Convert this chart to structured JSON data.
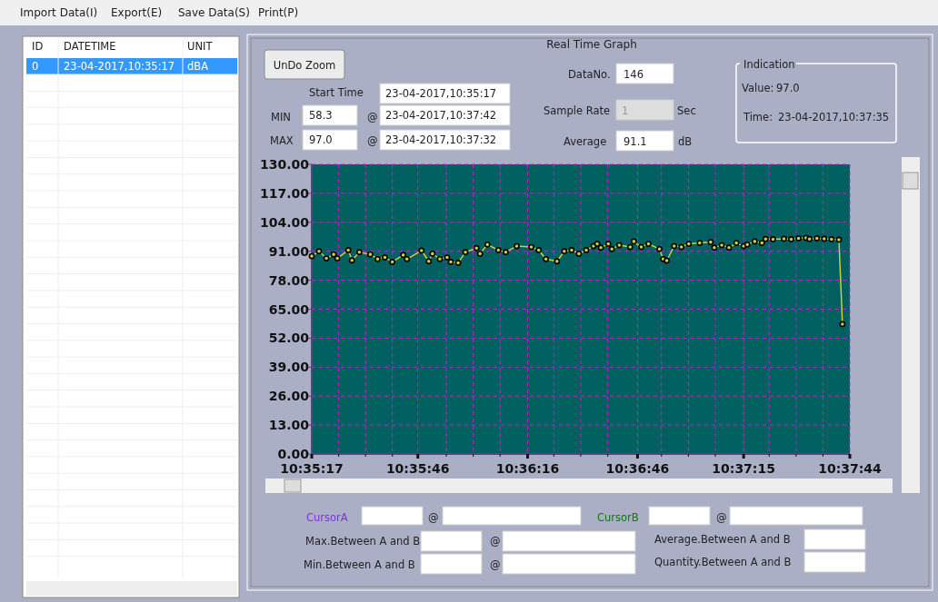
{
  "chart_data": {
    "type": "line",
    "title": "Real Time Graph",
    "x": [
      10.58806,
      10.58861,
      10.58917,
      10.58972,
      10.59,
      10.59083,
      10.59111,
      10.59167,
      10.5925,
      10.59306,
      10.59361,
      10.59417,
      10.595,
      10.59528,
      10.59639,
      10.59694,
      10.59722,
      10.59778,
      10.59833,
      10.59861,
      10.59917,
      10.59972,
      10.60056,
      10.60083,
      10.60139,
      10.60222,
      10.60278,
      10.60361,
      10.60472,
      10.60528,
      10.60583,
      10.60667,
      10.60722,
      10.60778,
      10.60833,
      10.60889,
      10.60944,
      10.60972,
      10.61,
      10.61056,
      10.61083,
      10.61139,
      10.61222,
      10.6125,
      10.61306,
      10.61361,
      10.61444,
      10.61472,
      10.615,
      10.61556,
      10.61611,
      10.61667,
      10.6175,
      10.61833,
      10.61861,
      10.61917,
      10.61972,
      10.62028,
      10.62083,
      10.62111,
      10.62167,
      10.62222,
      10.6225,
      10.62306,
      10.62389,
      10.62444,
      10.625,
      10.62556,
      10.62583,
      10.62639,
      10.62694,
      10.6275,
      10.62806,
      10.62833
    ],
    "series": [
      {
        "color": "#c8d040",
        "values": [
          88.8,
          91.0,
          87.8,
          89.6,
          87.8,
          91.5,
          86.9,
          90.6,
          89.6,
          87.5,
          88.2,
          86.2,
          89.3,
          87.5,
          91.3,
          86.5,
          89.9,
          87.5,
          88.2,
          86.2,
          85.8,
          90.6,
          92.4,
          89.9,
          94.0,
          91.5,
          90.6,
          93.3,
          92.9,
          91.5,
          87.5,
          86.5,
          91.0,
          91.5,
          89.9,
          91.5,
          93.3,
          94.3,
          92.6,
          94.3,
          92.0,
          93.7,
          92.9,
          95.4,
          92.9,
          94.3,
          92.0,
          87.5,
          86.8,
          93.3,
          92.9,
          94.3,
          94.7,
          95.1,
          92.6,
          93.7,
          92.6,
          94.7,
          93.3,
          94.0,
          95.4,
          94.7,
          96.5,
          96.4,
          96.6,
          96.4,
          96.8,
          97.0,
          96.5,
          96.8,
          96.6,
          96.4,
          96.2,
          58.3
        ]
      }
    ],
    "xlim": [
      10.58806,
      10.62889
    ],
    "xticks": [
      {
        "value": 10.58806,
        "label": "10:35:17"
      },
      {
        "value": 10.5901,
        "label": null
      },
      {
        "value": 10.59214,
        "label": null
      },
      {
        "value": 10.59418,
        "label": null
      },
      {
        "value": 10.59611,
        "label": "10:35:46"
      },
      {
        "value": 10.59827,
        "label": null
      },
      {
        "value": 10.60031,
        "label": null
      },
      {
        "value": 10.60235,
        "label": null
      },
      {
        "value": 10.60444,
        "label": "10:36:16"
      },
      {
        "value": 10.60643,
        "label": null
      },
      {
        "value": 10.60847,
        "label": null
      },
      {
        "value": 10.61052,
        "label": null
      },
      {
        "value": 10.61278,
        "label": "10:36:46"
      },
      {
        "value": 10.6146,
        "label": null
      },
      {
        "value": 10.61664,
        "label": null
      },
      {
        "value": 10.61868,
        "label": null
      },
      {
        "value": 10.62083,
        "label": "10:37:15"
      },
      {
        "value": 10.62277,
        "label": null
      },
      {
        "value": 10.62481,
        "label": null
      },
      {
        "value": 10.62685,
        "label": null
      },
      {
        "value": 10.62889,
        "label": "10:37:44"
      }
    ],
    "ylim": [
      0,
      130
    ],
    "yticks": [
      {
        "value": 0,
        "label": "0.00"
      },
      {
        "value": 13,
        "label": "13.00"
      },
      {
        "value": 26,
        "label": "26.00"
      },
      {
        "value": 39,
        "label": "39.00"
      },
      {
        "value": 52,
        "label": "52.00"
      },
      {
        "value": 65,
        "label": "65.00"
      },
      {
        "value": 78,
        "label": "78.00"
      },
      {
        "value": 91,
        "label": "91.00"
      },
      {
        "value": 104,
        "label": "104.00"
      },
      {
        "value": 117,
        "label": "117.00"
      },
      {
        "value": 130,
        "label": "130.00"
      }
    ],
    "grid": true,
    "marker": "circle",
    "annotations": [
      "Import Data(I)",
      "Export(E)",
      "Save Data(S)",
      "Print(P)",
      "ID",
      "DATETIME",
      "UNIT",
      "0",
      "23-04-2017,10:35:17",
      "dBA",
      "UnDo Zoom",
      "Start Time",
      "23-04-2017,10:35:17",
      "MIN",
      "58.3",
      "@",
      "23-04-2017,10:37:42",
      "MAX",
      "97.0",
      "@",
      "23-04-2017,10:37:32",
      "DataNo.",
      "146",
      "Sample Rate",
      "1",
      "Sec",
      "Average",
      "91.1",
      "dB",
      "Indication",
      "Value:",
      "97.0",
      "Time:",
      "23-04-2017,10:37:35",
      "CursorA",
      "@",
      "CursorB",
      "@",
      "Max.Between A and B",
      "@",
      "Average.Between A and B",
      "Min.Between A and B",
      "@",
      "Quantity.Between A and B"
    ]
  }
}
